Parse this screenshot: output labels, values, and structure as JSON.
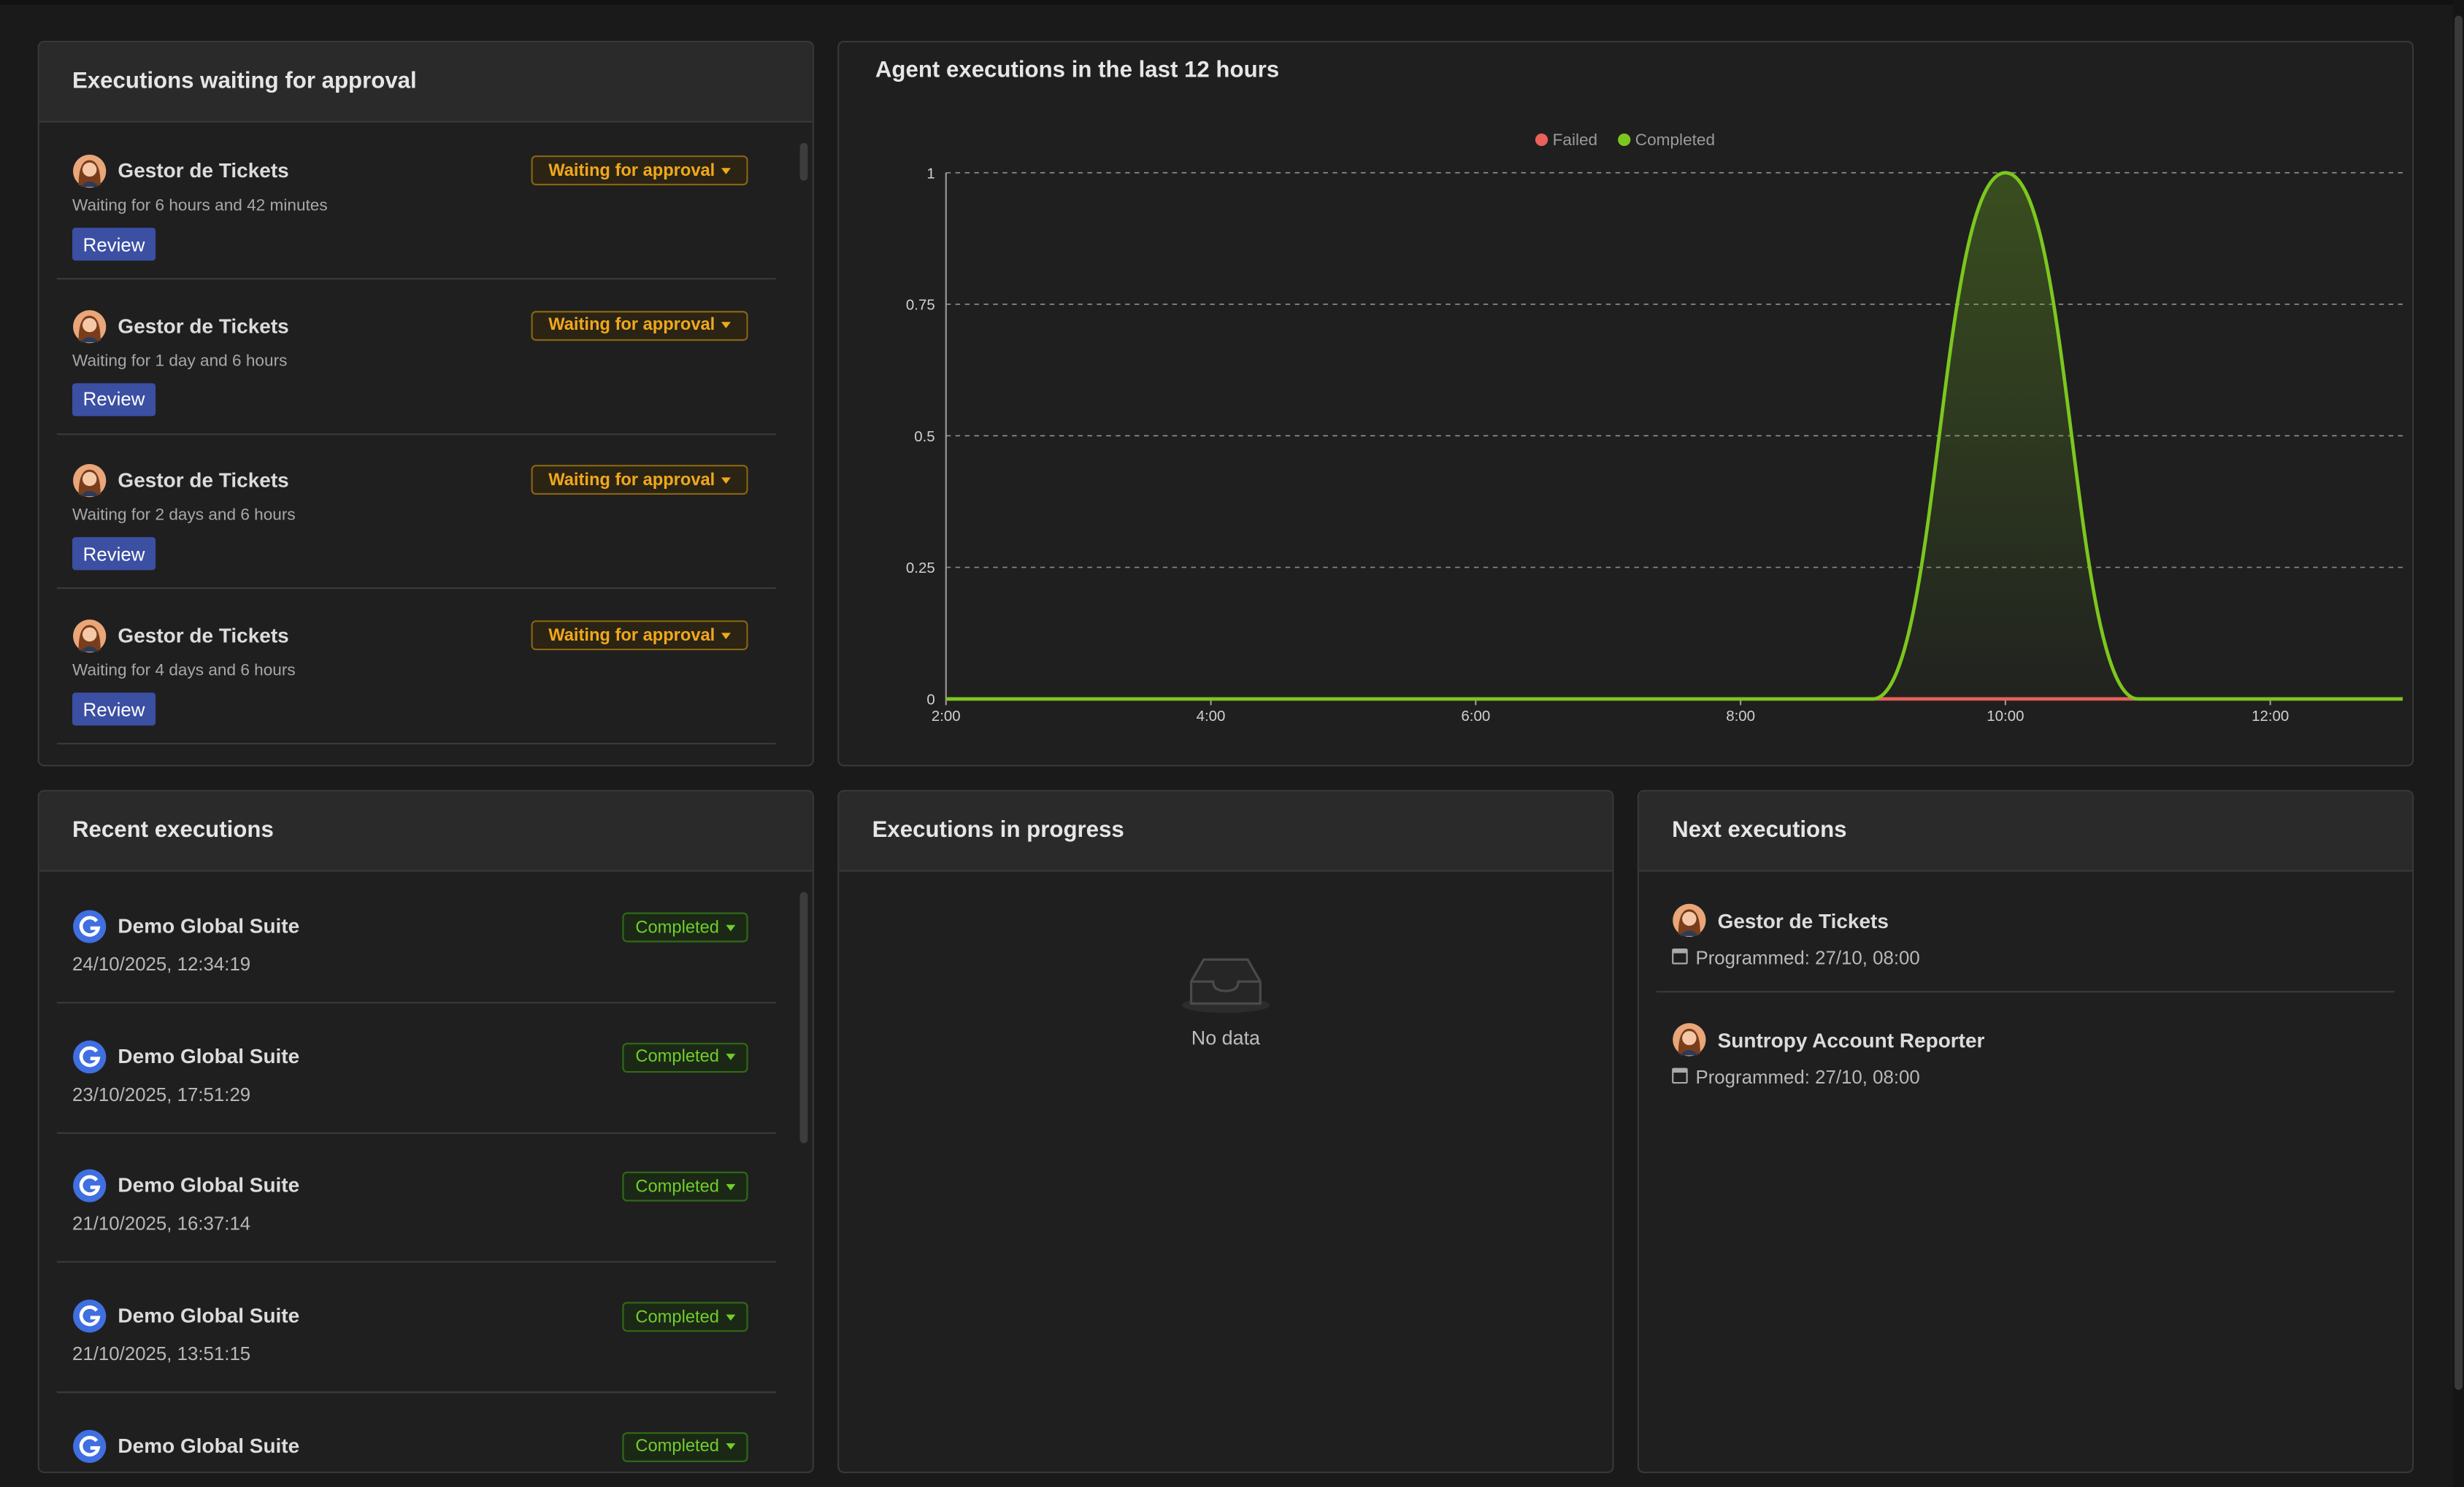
{
  "approval_panel": {
    "title": "Executions waiting for approval",
    "items": [
      {
        "name": "Gestor de Tickets",
        "status": "Waiting for approval",
        "waiting": "Waiting for 6 hours and 42 minutes",
        "action": "Review"
      },
      {
        "name": "Gestor de Tickets",
        "status": "Waiting for approval",
        "waiting": "Waiting for 1 day and 6 hours",
        "action": "Review"
      },
      {
        "name": "Gestor de Tickets",
        "status": "Waiting for approval",
        "waiting": "Waiting for 2 days and 6 hours",
        "action": "Review"
      },
      {
        "name": "Gestor de Tickets",
        "status": "Waiting for approval",
        "waiting": "Waiting for 4 days and 6 hours",
        "action": "Review"
      }
    ]
  },
  "chart_data": {
    "type": "line",
    "title": "Agent executions in the last 12 hours",
    "x": [
      2,
      3,
      4,
      5,
      6,
      7,
      8,
      9,
      10,
      11,
      12,
      13
    ],
    "series": [
      {
        "name": "Failed",
        "color": "#e8615a",
        "values": [
          0,
          0,
          0,
          0,
          0,
          0,
          0,
          0,
          0,
          0,
          0,
          0
        ]
      },
      {
        "name": "Completed",
        "color": "#7cc71f",
        "values": [
          0,
          0,
          0,
          0,
          0,
          0,
          0,
          0,
          1,
          0,
          0,
          0
        ]
      }
    ],
    "xlim": [
      2,
      13
    ],
    "xticks": [
      {
        "value": 2,
        "label": "2:00"
      },
      {
        "value": 4,
        "label": "4:00"
      },
      {
        "value": 6,
        "label": "6:00"
      },
      {
        "value": 8,
        "label": "8:00"
      },
      {
        "value": 10,
        "label": "10:00"
      },
      {
        "value": 12,
        "label": "12:00"
      }
    ],
    "ylim": [
      0,
      1
    ],
    "yticks": [
      0,
      0.25,
      0.5,
      0.75,
      1
    ],
    "grid": true,
    "legend": "top"
  },
  "recent_panel": {
    "title": "Recent executions",
    "items": [
      {
        "name": "Demo Global Suite",
        "status": "Completed",
        "date": "24/10/2025, 12:34:19"
      },
      {
        "name": "Demo Global Suite",
        "status": "Completed",
        "date": "23/10/2025, 17:51:29"
      },
      {
        "name": "Demo Global Suite",
        "status": "Completed",
        "date": "21/10/2025, 16:37:14"
      },
      {
        "name": "Demo Global Suite",
        "status": "Completed",
        "date": "21/10/2025, 13:51:15"
      },
      {
        "name": "Demo Global Suite",
        "status": "Completed"
      }
    ]
  },
  "progress_panel": {
    "title": "Executions in progress",
    "empty": "No data"
  },
  "next_panel": {
    "title": "Next executions",
    "items": [
      {
        "name": "Gestor de Tickets",
        "schedule": "Programmed: 27/10, 08:00"
      },
      {
        "name": "Suntropy Account Reporter",
        "schedule": "Programmed: 27/10, 08:00"
      }
    ]
  }
}
